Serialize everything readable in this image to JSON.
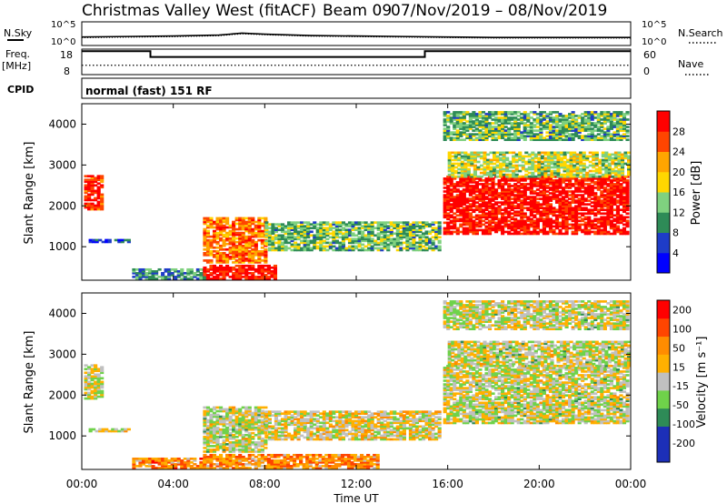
{
  "header": {
    "station": "Christmas Valley West (fitACF)",
    "beam": "Beam 09",
    "dates": "07/Nov/2019 – 08/Nov/2019"
  },
  "status_panels": {
    "nsky_label": "N.Sky",
    "nsearch_label": "N.Search",
    "freq_label_1": "Freq.",
    "freq_label_2": "[MHz]",
    "nave_label": "Nave",
    "cpid_label": "CPID",
    "cpid_value": "normal (fast) 151 RF",
    "noise_ticks": [
      "10^5",
      "10^0"
    ],
    "freq_ticks": [
      "18",
      "8"
    ],
    "nave_ticks": [
      "60",
      "0"
    ]
  },
  "chart_data": [
    {
      "type": "line",
      "name": "noise",
      "x": [
        "00:00",
        "02:00",
        "04:00",
        "06:00",
        "07:00",
        "08:00",
        "10:00",
        "12:00",
        "14:00",
        "16:00",
        "18:00",
        "20:00",
        "22:00",
        "24:00"
      ],
      "y": [
        1.8,
        1.9,
        2.0,
        2.2,
        2.6,
        2.4,
        2.1,
        2.0,
        1.9,
        1.8,
        1.7,
        1.7,
        1.7,
        1.7
      ],
      "ylim": [
        0,
        5
      ]
    },
    {
      "type": "line",
      "name": "frequency",
      "x": [
        "00:00",
        "03:00",
        "03:00",
        "15:00",
        "15:00",
        "24:00"
      ],
      "y": [
        17.2,
        17.2,
        14.9,
        14.9,
        17.2,
        17.2
      ],
      "nave_x": [
        "00:00",
        "24:00"
      ],
      "nave_y": [
        22,
        22
      ],
      "ylim": [
        8,
        18
      ]
    },
    {
      "type": "heatmap",
      "name": "power",
      "xlabel": "",
      "ylabel": "Slant Range [km]",
      "x_ticks": [
        "00:00",
        "04:00",
        "08:00",
        "12:00",
        "16:00",
        "20:00",
        "00:00"
      ],
      "y_ticks": [
        "1000",
        "2000",
        "3000",
        "4000"
      ],
      "ylim": [
        180,
        4500
      ],
      "colorbar_label": "Power [dB]",
      "colorbar_ticks": [
        "4",
        "8",
        "12",
        "16",
        "20",
        "24",
        "28"
      ],
      "colors": [
        "#0000ff",
        "#1e3cc8",
        "#2e8b57",
        "#7fd17f",
        "#ffd700",
        "#ffa500",
        "#ff4500",
        "#ff0000"
      ],
      "regions": [
        {
          "t0": 0.1,
          "t1": 0.9,
          "r0": 1900,
          "r1": 2750,
          "level": 0.9
        },
        {
          "t0": 0.3,
          "t1": 2.0,
          "r0": 1100,
          "r1": 1180,
          "level": 0.2
        },
        {
          "t0": 2.2,
          "t1": 5.3,
          "r0": 200,
          "r1": 450,
          "level": 0.3
        },
        {
          "t0": 5.3,
          "t1": 8.0,
          "r0": 600,
          "r1": 1700,
          "level": 0.75
        },
        {
          "t0": 5.3,
          "t1": 8.5,
          "r0": 200,
          "r1": 550,
          "level": 0.95
        },
        {
          "t0": 8.0,
          "t1": 15.7,
          "r0": 900,
          "r1": 1600,
          "level": 0.4
        },
        {
          "t0": 15.8,
          "t1": 23.9,
          "r0": 1300,
          "r1": 2700,
          "level": 0.95
        },
        {
          "t0": 16.0,
          "t1": 23.9,
          "r0": 2700,
          "r1": 3300,
          "level": 0.5
        },
        {
          "t0": 15.8,
          "t1": 23.9,
          "r0": 3600,
          "r1": 4300,
          "level": 0.4
        }
      ]
    },
    {
      "type": "heatmap",
      "name": "velocity",
      "xlabel": "Time UT",
      "ylabel": "Slant Range [km]",
      "x_ticks": [
        "00:00",
        "04:00",
        "08:00",
        "12:00",
        "16:00",
        "20:00",
        "00:00"
      ],
      "y_ticks": [
        "1000",
        "2000",
        "3000",
        "4000"
      ],
      "ylim": [
        180,
        4500
      ],
      "colorbar_label": "Velocity [m s⁻¹]",
      "colorbar_ticks": [
        "200",
        "100",
        "50",
        "15",
        "-15",
        "-50",
        "-100",
        "-200"
      ],
      "colors": [
        "#1c2fb8",
        "#1c2fb8",
        "#2e8b57",
        "#6fd24a",
        "#c0c0c0",
        "#ffb000",
        "#ff8c00",
        "#ff4500",
        "#ff0000"
      ],
      "regions": [
        {
          "t0": 0.1,
          "t1": 0.9,
          "r0": 1900,
          "r1": 2750,
          "level": 0.5
        },
        {
          "t0": 0.3,
          "t1": 2.0,
          "r0": 1100,
          "r1": 1180,
          "level": 0.5
        },
        {
          "t0": 2.2,
          "t1": 5.3,
          "r0": 200,
          "r1": 450,
          "level": 0.72
        },
        {
          "t0": 5.3,
          "t1": 8.0,
          "r0": 600,
          "r1": 1700,
          "level": 0.5
        },
        {
          "t0": 5.3,
          "t1": 13.0,
          "r0": 200,
          "r1": 550,
          "level": 0.7
        },
        {
          "t0": 8.0,
          "t1": 15.7,
          "r0": 900,
          "r1": 1600,
          "level": 0.55
        },
        {
          "t0": 15.8,
          "t1": 23.9,
          "r0": 1300,
          "r1": 2700,
          "level": 0.5
        },
        {
          "t0": 16.0,
          "t1": 23.9,
          "r0": 2700,
          "r1": 3300,
          "level": 0.5
        },
        {
          "t0": 15.8,
          "t1": 23.9,
          "r0": 3600,
          "r1": 4300,
          "level": 0.5
        }
      ]
    }
  ]
}
